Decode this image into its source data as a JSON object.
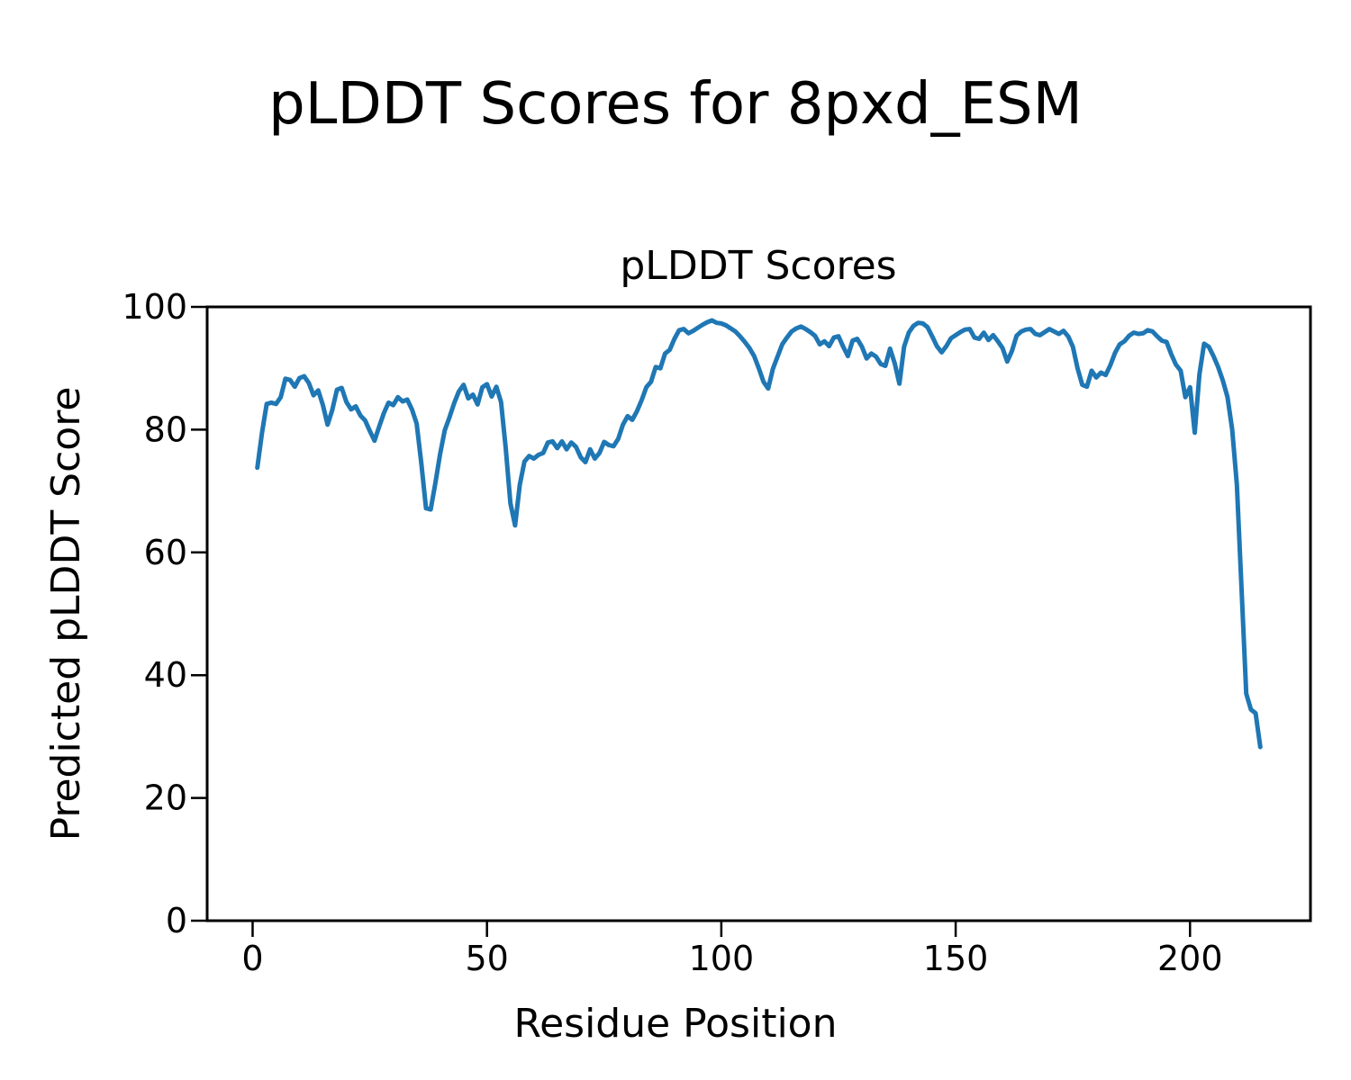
{
  "figure": {
    "suptitle": "pLDDT Scores for 8pxd_ESM"
  },
  "colors": {
    "line": "#1f77b4",
    "axes": "#000000",
    "background": "#ffffff",
    "text": "#000000"
  },
  "chart_data": {
    "type": "line",
    "title": "pLDDT Scores",
    "suptitle": "pLDDT Scores for 8pxd_ESM",
    "xlabel": "Residue Position",
    "ylabel": "Predicted pLDDT Score",
    "xlim": [
      -9.7,
      225.7
    ],
    "ylim": [
      0,
      100
    ],
    "x_ticks": [
      0,
      50,
      100,
      150,
      200
    ],
    "y_ticks": [
      0,
      20,
      40,
      60,
      80,
      100
    ],
    "grid": false,
    "legend": null,
    "line_color": "#1f77b4",
    "series": [
      {
        "name": "pLDDT",
        "x_start": 1,
        "x_step": 1,
        "values": [
          73.8,
          79.5,
          84.2,
          84.4,
          84.2,
          85.3,
          88.3,
          88.1,
          87.0,
          88.4,
          88.7,
          87.6,
          85.6,
          86.4,
          84.0,
          80.8,
          83.2,
          86.5,
          86.8,
          84.5,
          83.3,
          83.8,
          82.3,
          81.5,
          79.8,
          78.2,
          80.5,
          82.7,
          84.4,
          84.0,
          85.3,
          84.6,
          84.9,
          83.3,
          81.0,
          74.5,
          67.2,
          67.0,
          71.3,
          76.0,
          79.9,
          82.0,
          84.3,
          86.2,
          87.3,
          85.1,
          85.7,
          84.1,
          86.9,
          87.4,
          85.4,
          87.0,
          84.5,
          77.0,
          68.0,
          64.4,
          71.0,
          74.8,
          75.7,
          75.3,
          75.9,
          76.2,
          77.9,
          78.1,
          77.0,
          78.1,
          76.8,
          77.9,
          77.2,
          75.5,
          74.7,
          76.8,
          75.3,
          76.2,
          78.0,
          77.5,
          77.3,
          78.5,
          80.8,
          82.2,
          81.6,
          83.0,
          84.8,
          86.9,
          87.8,
          90.2,
          90.0,
          92.4,
          93.0,
          94.8,
          96.2,
          96.4,
          95.7,
          96.1,
          96.6,
          97.1,
          97.5,
          97.8,
          97.4,
          97.3,
          97.0,
          96.5,
          96.0,
          95.2,
          94.3,
          93.3,
          92.0,
          90.0,
          87.8,
          86.7,
          89.9,
          91.9,
          93.9,
          95.0,
          96.0,
          96.5,
          96.8,
          96.4,
          95.9,
          95.3,
          93.9,
          94.4,
          93.6,
          95.0,
          95.2,
          93.5,
          92.0,
          94.5,
          94.8,
          93.5,
          91.6,
          92.4,
          91.9,
          90.7,
          90.4,
          93.2,
          90.8,
          87.5,
          93.5,
          95.8,
          96.9,
          97.4,
          97.3,
          96.7,
          95.2,
          93.6,
          92.6,
          93.6,
          94.9,
          95.4,
          95.9,
          96.3,
          96.4,
          95.0,
          94.8,
          95.8,
          94.6,
          95.4,
          94.4,
          93.3,
          91.1,
          92.8,
          95.3,
          96.0,
          96.3,
          96.4,
          95.6,
          95.4,
          95.9,
          96.4,
          96.0,
          95.6,
          96.1,
          95.2,
          93.5,
          90.0,
          87.3,
          87.0,
          89.6,
          88.5,
          89.3,
          88.9,
          90.5,
          92.5,
          93.9,
          94.4,
          95.3,
          95.8,
          95.6,
          95.7,
          96.2,
          96.0,
          95.2,
          94.5,
          94.3,
          92.3,
          90.6,
          89.6,
          85.3,
          86.9,
          79.5,
          89.0,
          94.0,
          93.5,
          92.0,
          90.2,
          88.0,
          85.3,
          80.0,
          71.0,
          54.0,
          37.0,
          34.4,
          33.8,
          28.3
        ]
      }
    ]
  }
}
